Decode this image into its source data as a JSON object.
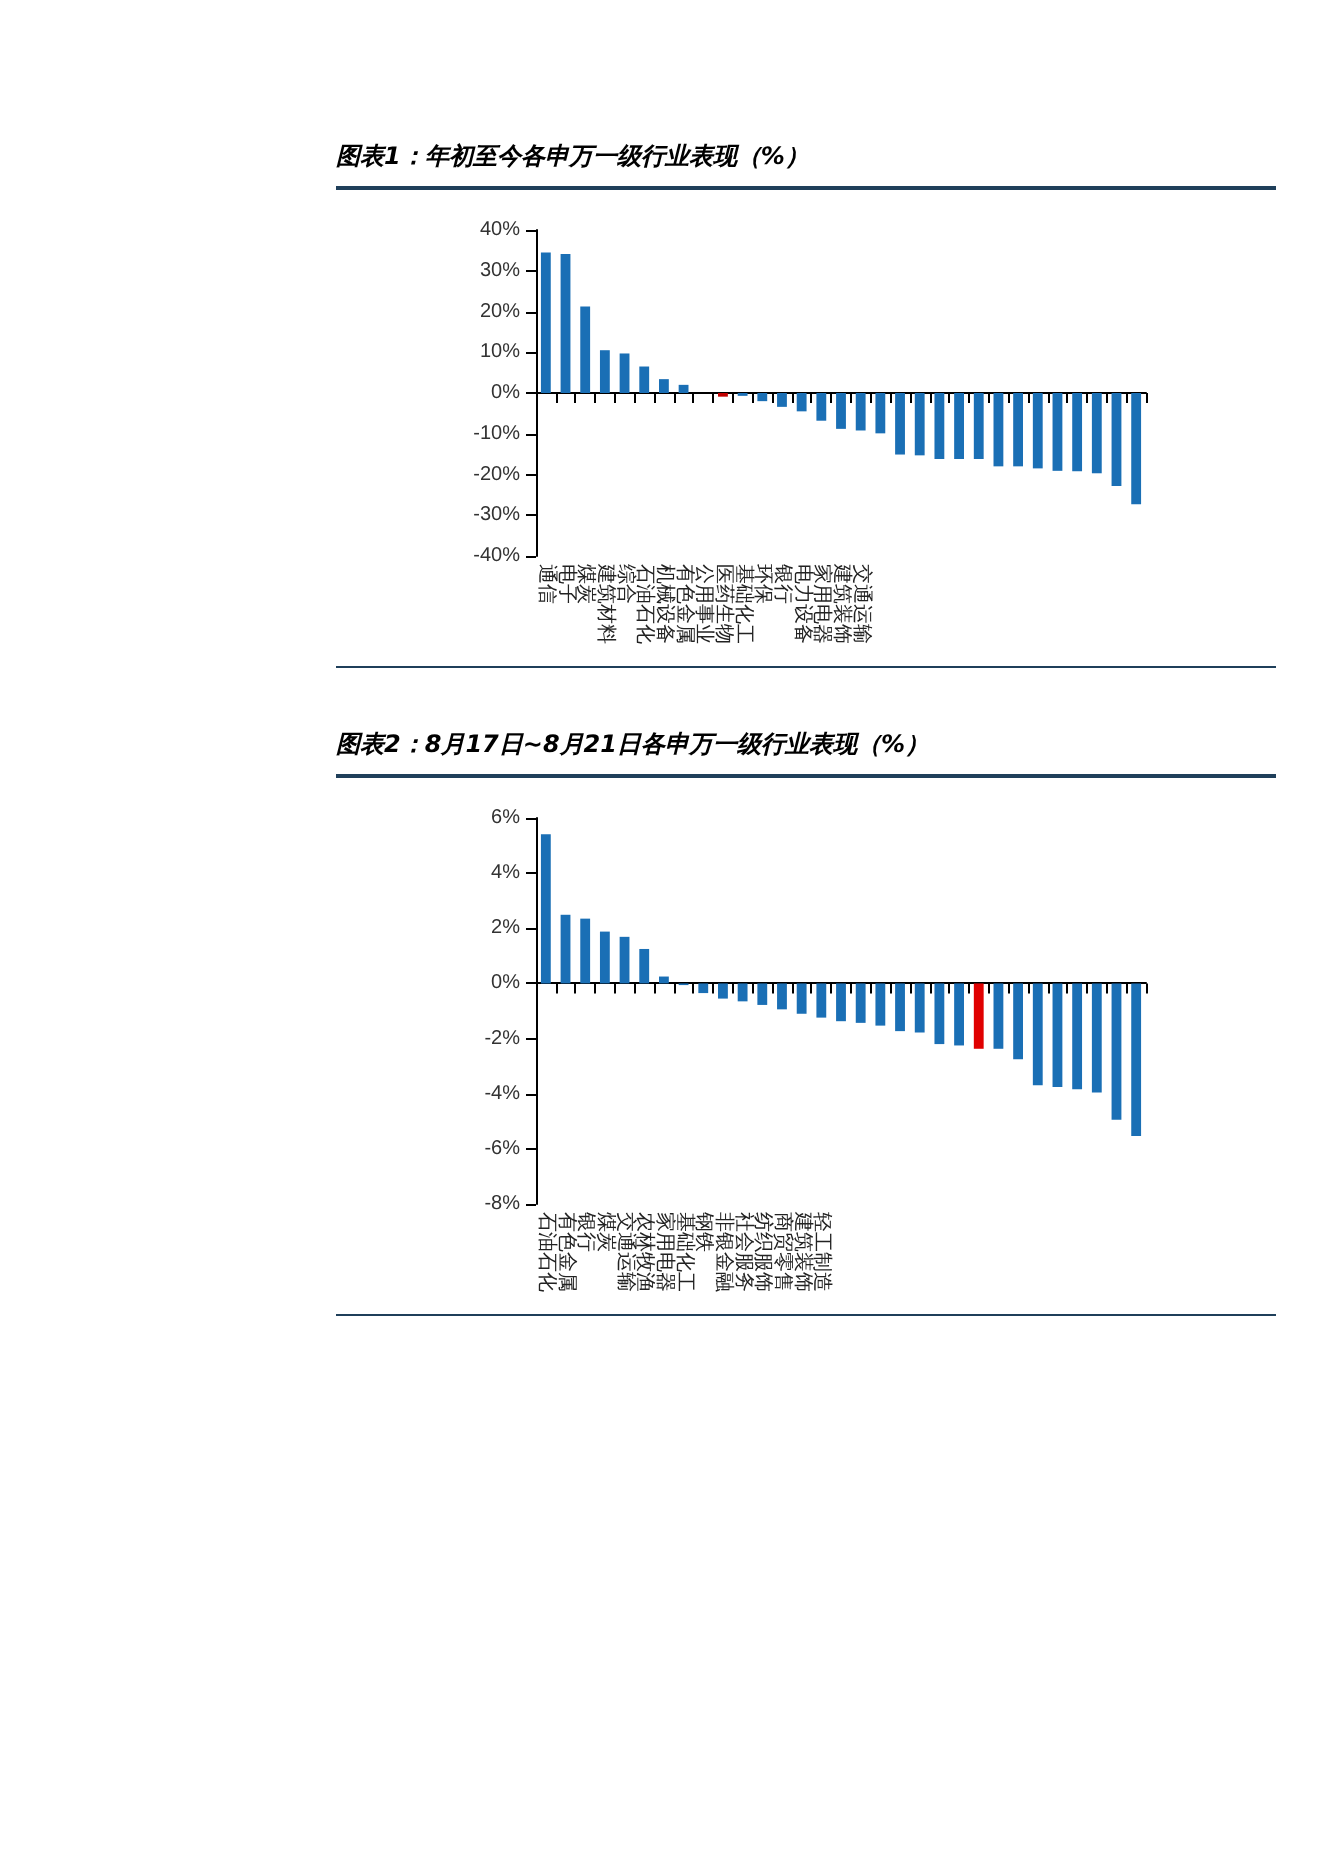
{
  "chart_data": [
    {
      "type": "bar",
      "title": "图表1：年初至今各申万一级行业表现（%）",
      "categories": [
        "通信",
        "电子",
        "煤炭",
        "建筑材料",
        "综合",
        "石油石化",
        "机械设备",
        "有色金属",
        "公用事业",
        "医药生物",
        "基础化工",
        "环保",
        "银行",
        "电力设备",
        "家用电器",
        "建筑装饰",
        "交通运输",
        null,
        null,
        null,
        null,
        null,
        null,
        null,
        null,
        null,
        null,
        null,
        null,
        null,
        null
      ],
      "values": [
        34.5,
        34.1,
        21.2,
        10.5,
        9.7,
        6.5,
        3.4,
        2.0,
        null,
        -0.9,
        -0.7,
        -2.0,
        -3.4,
        -4.5,
        -6.8,
        -8.8,
        -9.2,
        -9.9,
        -15.1,
        -15.3,
        -16.2,
        -16.2,
        -16.2,
        -18.0,
        -18.0,
        -18.5,
        -19.1,
        -19.2,
        -19.7,
        -22.8,
        -27.3
      ],
      "colors": [
        "#1a6fb5",
        "#1a6fb5",
        "#1a6fb5",
        "#1a6fb5",
        "#1a6fb5",
        "#1a6fb5",
        "#1a6fb5",
        "#1a6fb5",
        "#1a6fb5",
        "#c00000",
        "#1a6fb5",
        "#1a6fb5",
        "#1a6fb5",
        "#1a6fb5",
        "#1a6fb5",
        "#1a6fb5",
        "#1a6fb5",
        "#1a6fb5",
        "#1a6fb5",
        "#1a6fb5",
        "#1a6fb5",
        "#1a6fb5",
        "#1a6fb5",
        "#1a6fb5",
        "#1a6fb5",
        "#1a6fb5",
        "#1a6fb5",
        "#1a6fb5",
        "#1a6fb5",
        "#1a6fb5",
        "#1a6fb5"
      ],
      "ylim": [
        -40,
        40
      ],
      "yticks": [
        {
          "value": -40,
          "label": "-40%"
        },
        {
          "value": -30,
          "label": "-30%"
        },
        {
          "value": -20,
          "label": "-20%"
        },
        {
          "value": -10,
          "label": "-10%"
        },
        {
          "value": 0,
          "label": "0%"
        },
        {
          "value": 10,
          "label": "10%"
        },
        {
          "value": 20,
          "label": "20%"
        },
        {
          "value": 30,
          "label": "30%"
        },
        {
          "value": 40,
          "label": "40%"
        }
      ]
    },
    {
      "type": "bar",
      "title": "图表2：8月17日~8月21日各申万一级行业表现（%）",
      "categories": [
        "石油石化",
        "有色金属",
        "银行",
        "煤炭",
        "交通运输",
        "农林牧渔",
        "家用电器",
        "基础化工",
        "钢铁",
        "非银金融",
        "社会服务",
        "纺织服饰",
        "商贸零售",
        "建筑装饰",
        "轻工制造",
        null,
        null,
        null,
        null,
        null,
        null,
        null,
        null,
        null,
        null,
        null,
        null,
        null,
        null,
        null,
        null
      ],
      "values": [
        5.41,
        2.49,
        2.35,
        1.88,
        1.69,
        1.25,
        0.25,
        -0.06,
        -0.35,
        -0.55,
        -0.65,
        -0.78,
        -0.94,
        -1.1,
        -1.24,
        -1.37,
        -1.43,
        -1.53,
        -1.73,
        -1.78,
        -2.2,
        -2.25,
        -2.37,
        -2.37,
        -2.75,
        -3.69,
        -3.76,
        -3.84,
        -3.96,
        -4.94,
        -5.53
      ],
      "colors": [
        "#1a6fb5",
        "#1a6fb5",
        "#1a6fb5",
        "#1a6fb5",
        "#1a6fb5",
        "#1a6fb5",
        "#1a6fb5",
        "#1a6fb5",
        "#1a6fb5",
        "#1a6fb5",
        "#1a6fb5",
        "#1a6fb5",
        "#1a6fb5",
        "#1a6fb5",
        "#1a6fb5",
        "#1a6fb5",
        "#1a6fb5",
        "#1a6fb5",
        "#1a6fb5",
        "#1a6fb5",
        "#1a6fb5",
        "#1a6fb5",
        "#e00000",
        "#1a6fb5",
        "#1a6fb5",
        "#1a6fb5",
        "#1a6fb5",
        "#1a6fb5",
        "#1a6fb5",
        "#1a6fb5",
        "#1a6fb5"
      ],
      "ylim": [
        -8,
        6
      ],
      "yticks": [
        {
          "value": -8,
          "label": "-8%"
        },
        {
          "value": -6,
          "label": "-6%"
        },
        {
          "value": -4,
          "label": "-4%"
        },
        {
          "value": -2,
          "label": "-2%"
        },
        {
          "value": 0,
          "label": "0%"
        },
        {
          "value": 2,
          "label": "2%"
        },
        {
          "value": 4,
          "label": "4%"
        },
        {
          "value": 6,
          "label": "6%"
        }
      ]
    }
  ]
}
